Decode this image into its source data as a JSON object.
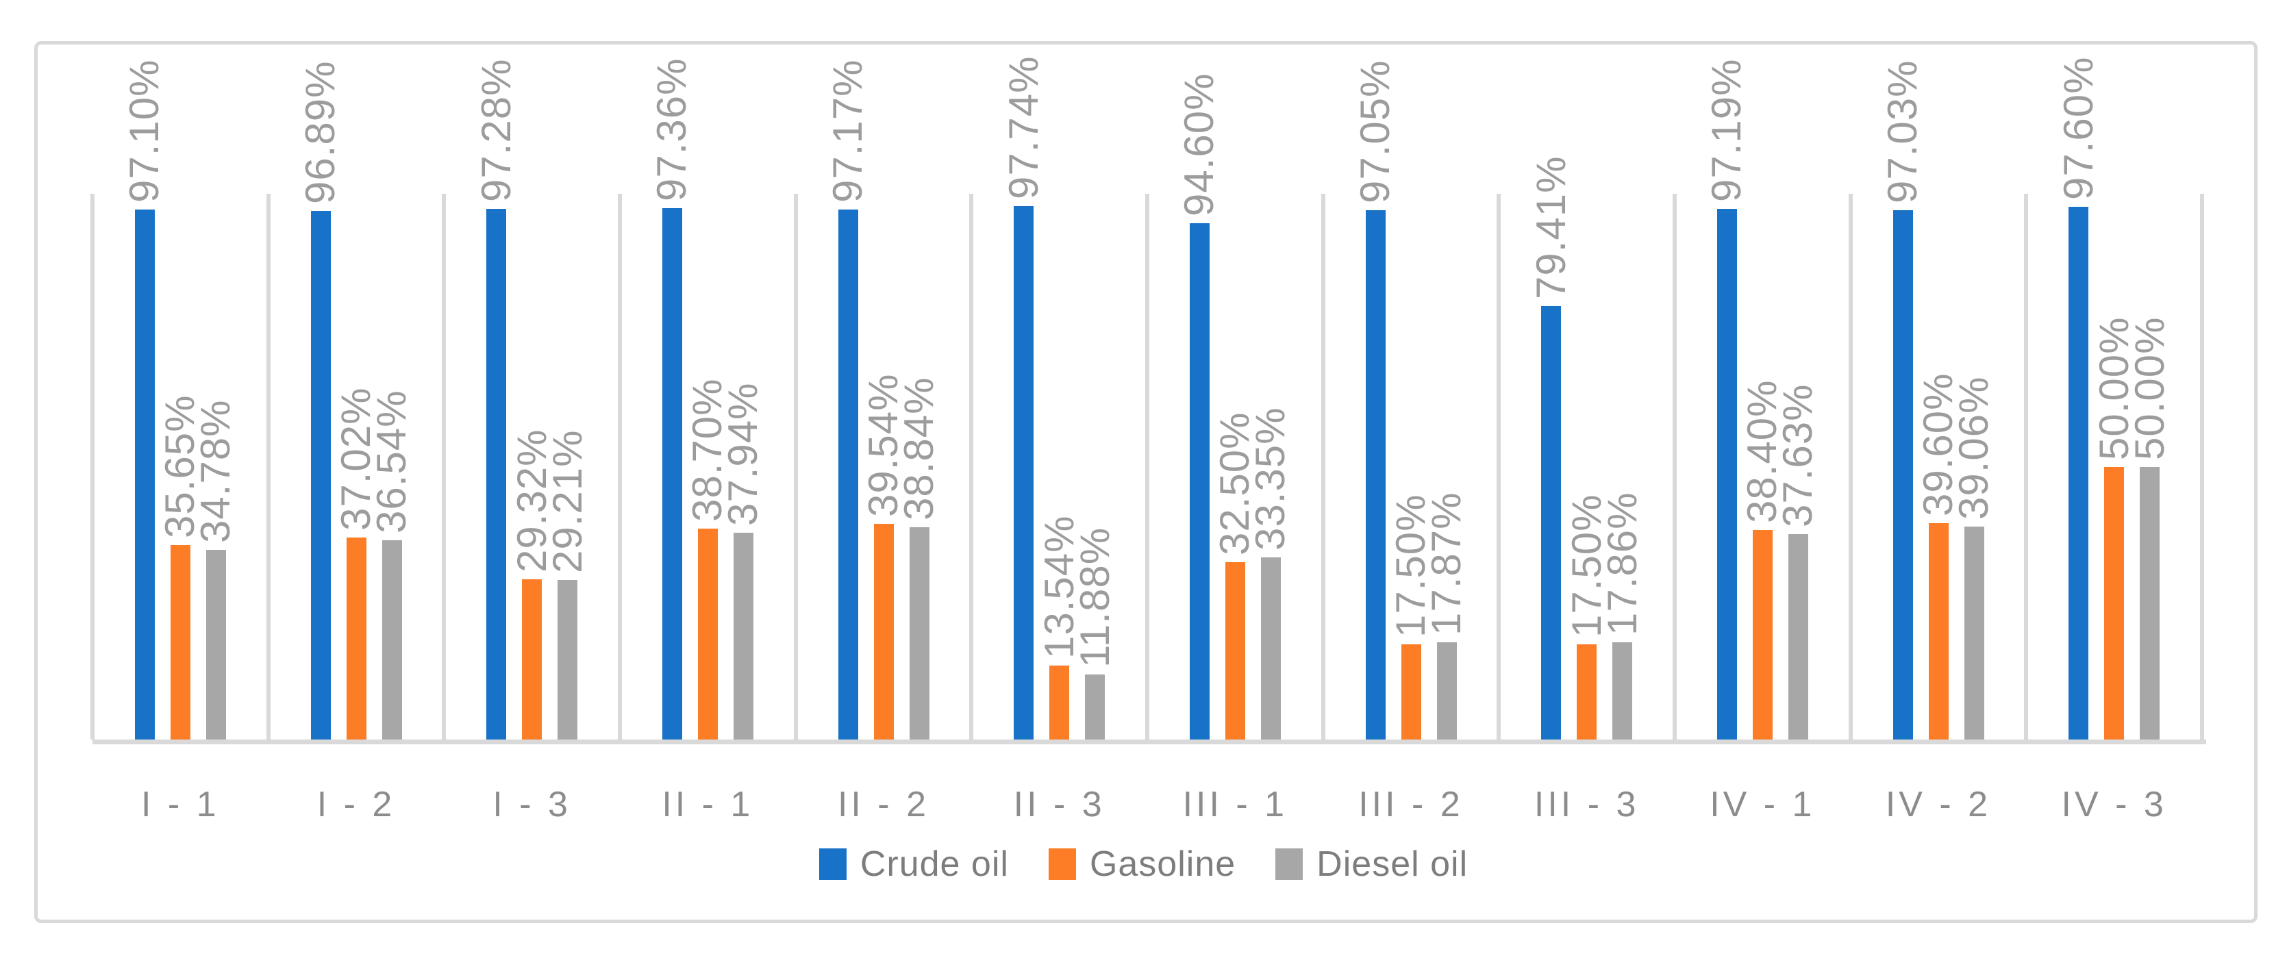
{
  "chart_data": {
    "type": "bar",
    "title": "",
    "xlabel": "",
    "ylabel": "",
    "ylim": [
      0,
      100
    ],
    "unit": "%",
    "grid": "vertical-category-separators",
    "data_label_rotation": 90,
    "legend_position": "bottom",
    "categories": [
      "I - 1",
      "I - 2",
      "I - 3",
      "II - 1",
      "II - 2",
      "II - 3",
      "III - 1",
      "III - 2",
      "III - 3",
      "IV - 1",
      "IV - 2",
      "IV - 3"
    ],
    "series": [
      {
        "name": "Crude oil",
        "color": "#1772c8",
        "values": [
          97.1,
          96.89,
          97.28,
          97.36,
          97.17,
          97.74,
          94.6,
          97.05,
          79.41,
          97.19,
          97.03,
          97.6
        ],
        "labels": [
          "97.10%",
          "96.89%",
          "97.28%",
          "97.36%",
          "97.17%",
          "97.74%",
          "94.60%",
          "97.05%",
          "79.41%",
          "97.19%",
          "97.03%",
          "97.60%"
        ]
      },
      {
        "name": "Gasoline",
        "color": "#fd7c26",
        "values": [
          35.65,
          37.02,
          29.32,
          38.7,
          39.54,
          13.54,
          32.5,
          17.5,
          17.5,
          38.4,
          39.6,
          50.0
        ],
        "labels": [
          "35.65%",
          "37.02%",
          "29.32%",
          "38.70%",
          "39.54%",
          "13.54%",
          "32.50%",
          "17.50%",
          "17.50%",
          "38.40%",
          "39.60%",
          "50.00%"
        ]
      },
      {
        "name": "Diesel oil",
        "color": "#a7a7a7",
        "values": [
          34.78,
          36.54,
          29.21,
          37.94,
          38.84,
          11.88,
          33.35,
          17.87,
          17.86,
          37.63,
          39.06,
          50.0
        ],
        "labels": [
          "34.78%",
          "36.54%",
          "29.21%",
          "37.94%",
          "38.84%",
          "11.88%",
          "33.35%",
          "17.87%",
          "17.86%",
          "37.63%",
          "39.06%",
          "50.00%"
        ]
      }
    ],
    "colors": {
      "frame_border": "#d9d9d9",
      "separator_line": "#d9d9d9",
      "baseline": "#d9d9d9",
      "data_label_text": "#9c9c9c",
      "axis_label_text": "#8c8c8c",
      "legend_text": "#7d7d7d",
      "background": "#ffffff"
    }
  }
}
